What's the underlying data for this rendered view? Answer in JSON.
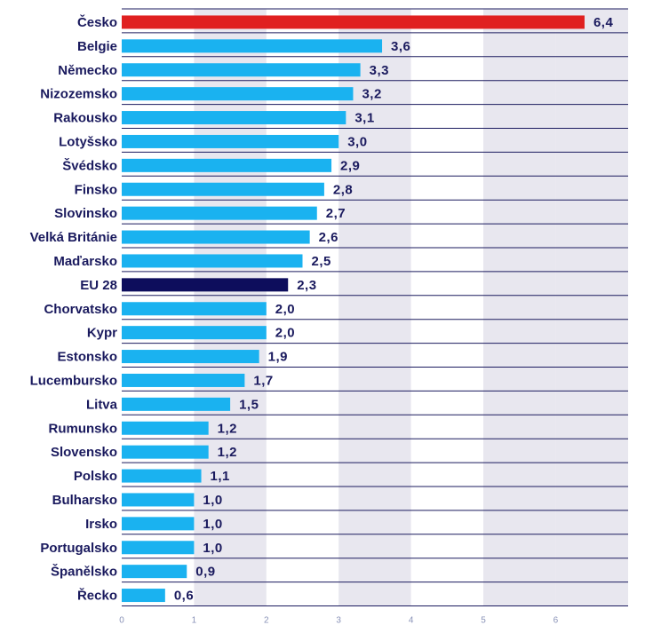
{
  "chart_data": {
    "type": "bar",
    "orientation": "horizontal",
    "title": "",
    "xlabel": "",
    "ylabel": "",
    "xlim": [
      0,
      7
    ],
    "xticks": [
      0,
      1,
      2,
      3,
      4,
      5,
      6
    ],
    "xtick_labels": [
      "0",
      "1",
      "2",
      "3",
      "4",
      "5",
      "6"
    ],
    "categories": [
      "Česko",
      "Belgie",
      "Německo",
      "Nizozemsko",
      "Rakousko",
      "Lotyšsko",
      "Švédsko",
      "Finsko",
      "Slovinsko",
      "Velká Británie",
      "Maďarsko",
      "EU 28",
      "Chorvatsko",
      "Kypr",
      "Estonsko",
      "Lucembursko",
      "Litva",
      "Rumunsko",
      "Slovensko",
      "Polsko",
      "Bulharsko",
      "Irsko",
      "Portugalsko",
      "Španělsko",
      "Řecko"
    ],
    "values": [
      6.4,
      3.6,
      3.3,
      3.2,
      3.1,
      3.0,
      2.9,
      2.8,
      2.7,
      2.6,
      2.5,
      2.3,
      2.0,
      2.0,
      1.9,
      1.7,
      1.5,
      1.2,
      1.2,
      1.1,
      1.0,
      1.0,
      1.0,
      0.9,
      0.6
    ],
    "value_labels": [
      "6,4",
      "3,6",
      "3,3",
      "3,2",
      "3,1",
      "3,0",
      "2,9",
      "2,8",
      "2,7",
      "2,6",
      "2,5",
      "2,3",
      "2,0",
      "2,0",
      "1,9",
      "1,7",
      "1,5",
      "1,2",
      "1,2",
      "1,1",
      "1,0",
      "1,0",
      "1,0",
      "0,9",
      "0,6"
    ],
    "highlight": {
      "Česko": "#e02020",
      "EU 28": "#0d0d5c"
    },
    "colors": {
      "bar": "#1ab2f0",
      "stripe": "#e8e7ef",
      "row_line": "#1a1a5e",
      "label": "#1a1a5e",
      "tick": "#8a93b8"
    },
    "grid": true
  }
}
